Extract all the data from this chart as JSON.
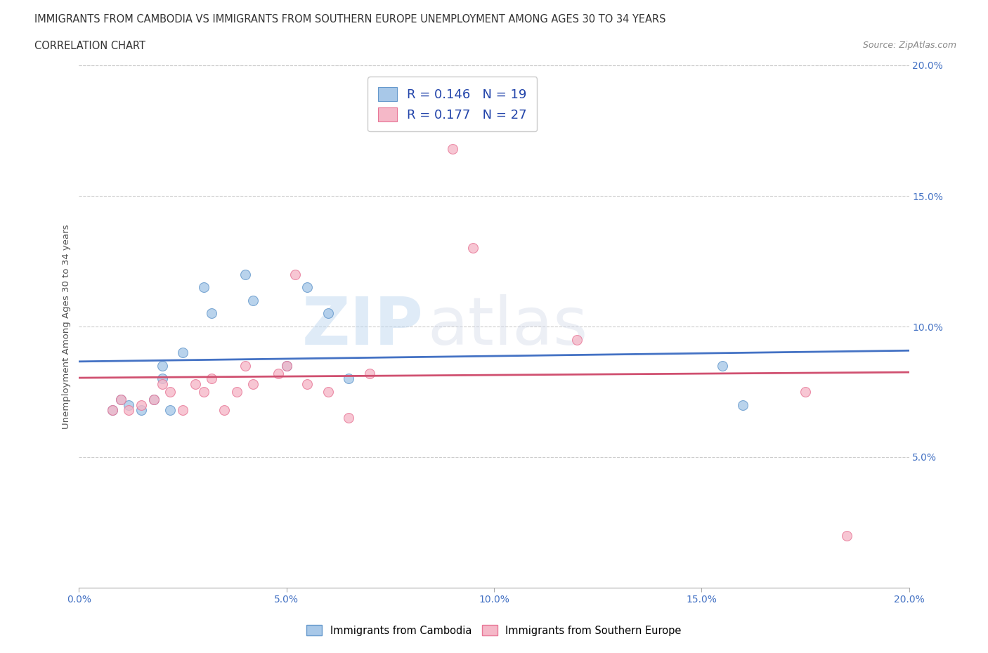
{
  "title_line1": "IMMIGRANTS FROM CAMBODIA VS IMMIGRANTS FROM SOUTHERN EUROPE UNEMPLOYMENT AMONG AGES 30 TO 34 YEARS",
  "title_line2": "CORRELATION CHART",
  "source_text": "Source: ZipAtlas.com",
  "ylabel": "Unemployment Among Ages 30 to 34 years",
  "xlim": [
    0.0,
    0.2
  ],
  "ylim": [
    0.0,
    0.2
  ],
  "xticks": [
    0.0,
    0.05,
    0.1,
    0.15,
    0.2
  ],
  "yticks": [
    0.0,
    0.05,
    0.1,
    0.15,
    0.2
  ],
  "cambodia_color": "#a8c8e8",
  "cambodia_edge": "#6699cc",
  "se_color": "#f5b8c8",
  "se_edge": "#e87898",
  "trend_cambodia_color": "#4472c4",
  "trend_se_color": "#d05070",
  "legend_R1": "0.146",
  "legend_N1": "19",
  "legend_R2": "0.177",
  "legend_N2": "27",
  "legend_label1": "Immigrants from Cambodia",
  "legend_label2": "Immigrants from Southern Europe",
  "watermark_zip": "ZIP",
  "watermark_atlas": "atlas",
  "cambodia_x": [
    0.008,
    0.01,
    0.012,
    0.015,
    0.018,
    0.02,
    0.02,
    0.022,
    0.025,
    0.03,
    0.032,
    0.04,
    0.042,
    0.05,
    0.055,
    0.06,
    0.065,
    0.155,
    0.16
  ],
  "cambodia_y": [
    0.068,
    0.072,
    0.07,
    0.068,
    0.072,
    0.085,
    0.08,
    0.068,
    0.09,
    0.115,
    0.105,
    0.12,
    0.11,
    0.085,
    0.115,
    0.105,
    0.08,
    0.085,
    0.07
  ],
  "se_x": [
    0.008,
    0.01,
    0.012,
    0.015,
    0.018,
    0.02,
    0.022,
    0.025,
    0.028,
    0.03,
    0.032,
    0.035,
    0.038,
    0.04,
    0.042,
    0.048,
    0.05,
    0.052,
    0.055,
    0.06,
    0.065,
    0.07,
    0.09,
    0.095,
    0.12,
    0.175,
    0.185
  ],
  "se_y": [
    0.068,
    0.072,
    0.068,
    0.07,
    0.072,
    0.078,
    0.075,
    0.068,
    0.078,
    0.075,
    0.08,
    0.068,
    0.075,
    0.085,
    0.078,
    0.082,
    0.085,
    0.12,
    0.078,
    0.075,
    0.065,
    0.082,
    0.168,
    0.13,
    0.095,
    0.075,
    0.02
  ],
  "marker_size": 100,
  "background_color": "#ffffff",
  "grid_color": "#cccccc",
  "tick_color": "#4472c4",
  "title_color": "#333333",
  "ylabel_color": "#555555"
}
